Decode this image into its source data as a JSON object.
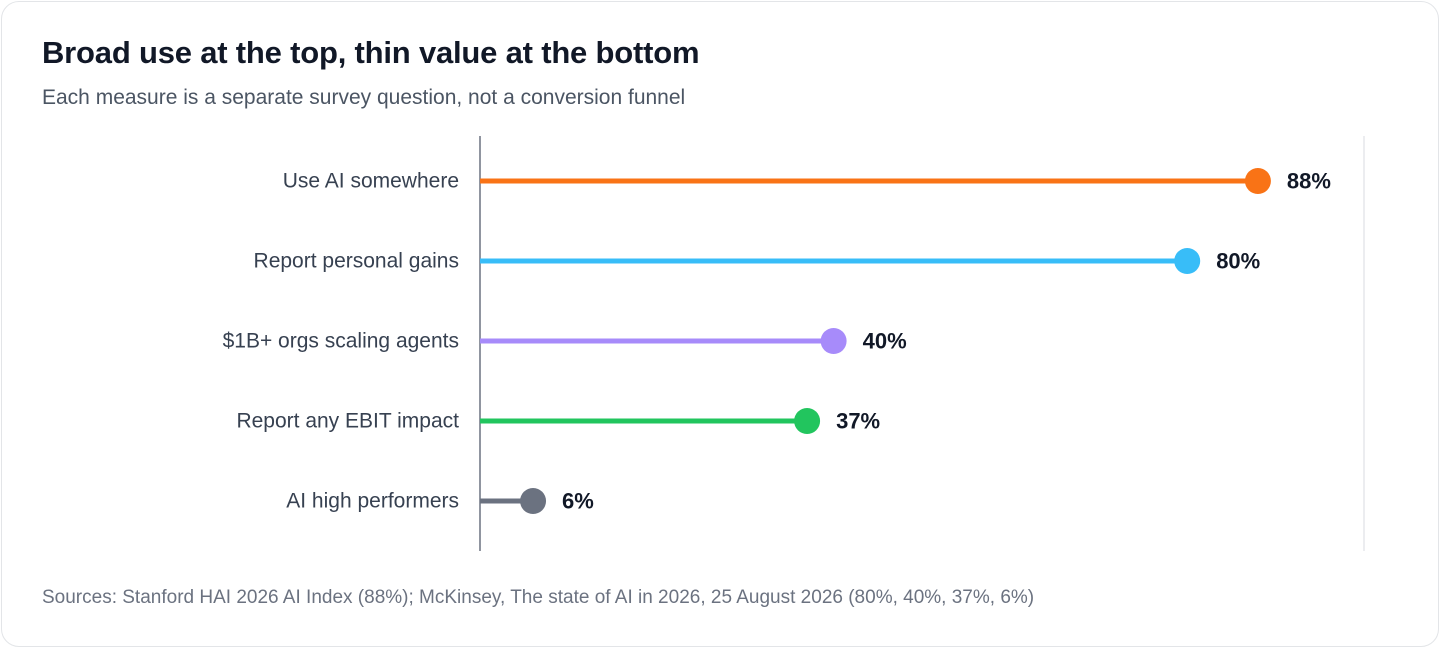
{
  "title": "Broad use at the top, thin value at the bottom",
  "subtitle": "Each measure is a separate survey question, not a conversion funnel",
  "source": "Sources: Stanford HAI 2026 AI Index (88%); McKinsey, The state of AI in 2026, 25 August 2026 (80%, 40%, 37%, 6%)",
  "chart_data": {
    "type": "bar",
    "style": "lollipop",
    "orientation": "horizontal",
    "categories": [
      "Use AI somewhere",
      "Report personal gains",
      "$1B+ orgs scaling agents",
      "Report any EBIT impact",
      "AI high performers"
    ],
    "values": [
      88,
      80,
      40,
      37,
      6
    ],
    "value_labels": [
      "88%",
      "80%",
      "40%",
      "37%",
      "6%"
    ],
    "colors": [
      "#f97316",
      "#38bdf8",
      "#a78bfa",
      "#22c55e",
      "#6b7280"
    ],
    "xlim": [
      0,
      100
    ],
    "grid": false,
    "legend": "none"
  }
}
